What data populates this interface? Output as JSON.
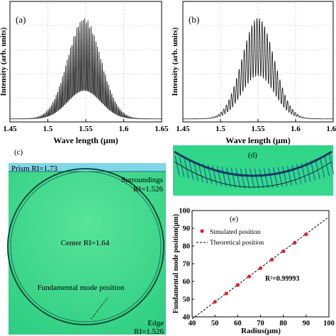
{
  "chart_data": [
    {
      "type": "line",
      "panel": "(a)",
      "xlabel": "Wave length (μm)",
      "ylabel": "Intensity (arb. units)",
      "xlim": [
        1.45,
        1.65
      ],
      "xticks": [
        "1.45",
        "1.5",
        "1.55",
        "1.6",
        "1.65"
      ],
      "center_um": 1.548,
      "envelope_width_um": 0.031,
      "fringe_period_um": 0.0021,
      "grid": true
    },
    {
      "type": "line",
      "panel": "(b)",
      "xlabel": "Wave length (μm)",
      "ylabel": "Intensity (arb. units)",
      "xlim": [
        1.45,
        1.65
      ],
      "xticks": [
        "1.45",
        "1.5",
        "1.55",
        "1.6",
        "1.65"
      ],
      "center_um": 1.55,
      "envelope_width_um": 0.03,
      "fringe_period_um": 0.0034,
      "grid": true
    },
    {
      "type": "scatter",
      "panel": "(e)",
      "xlabel": "Radius(μm)",
      "ylabel": "Fundamental mode position(μm)",
      "xlim": [
        40,
        100
      ],
      "ylim": [
        40,
        100
      ],
      "xticks": [
        "40",
        "50",
        "60",
        "70",
        "80",
        "90",
        "100"
      ],
      "yticks": [
        "40",
        "50",
        "60",
        "70",
        "80",
        "90",
        "100"
      ],
      "series": [
        {
          "name": "Simulated position",
          "x": [
            50,
            55,
            60,
            65,
            70,
            75,
            80,
            85,
            90
          ],
          "y": [
            48.5,
            53.2,
            58.0,
            62.8,
            67.5,
            72.3,
            77.0,
            81.8,
            86.6
          ]
        },
        {
          "name": "Theoretical position",
          "x": [
            40,
            100
          ],
          "y": [
            38.9,
            96.4
          ]
        }
      ],
      "annotation": "R²=0.99993",
      "legend_position": "top-left"
    }
  ],
  "panel_c": {
    "label": "(c)",
    "prism": "Prism RI=1.73",
    "surroundings": "Surroundings",
    "surroundings_ri": "RI=1.526",
    "center": "Center RI=1.64",
    "mode": "Fundamental mode position",
    "edge": "Edge",
    "edge_ri": "RI=1.526"
  },
  "panel_d": {
    "label": "(d)"
  },
  "colors": {
    "field": "#3fe08e",
    "field_dark": "#23b86e",
    "mode": "#1a2f8a",
    "marker": "#e8202a"
  }
}
